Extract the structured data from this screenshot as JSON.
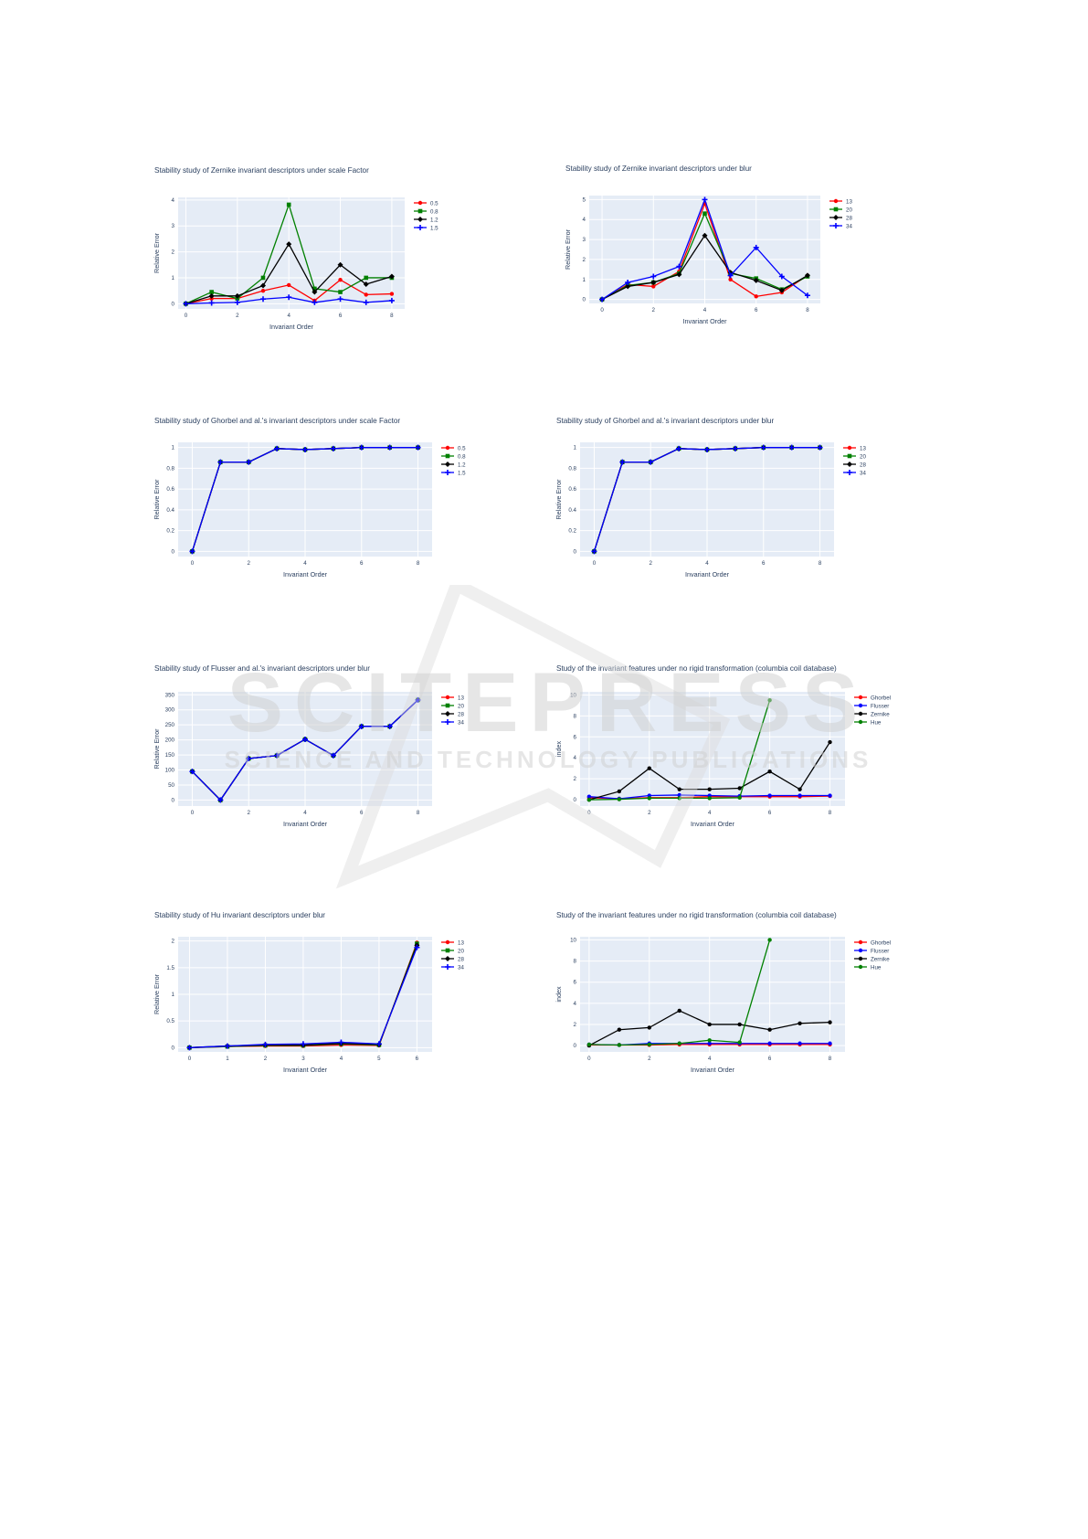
{
  "chart_data": [
    {
      "type": "line",
      "title": "Stability study of Zernike invariant descriptors under scale Factor",
      "xlabel": "Invariant Order",
      "ylabel": "Relative Error",
      "xlim": [
        -0.3,
        8.5
      ],
      "ylim": [
        -0.2,
        4.1
      ],
      "xticks": [
        0,
        2,
        4,
        6,
        8
      ],
      "yticks": [
        0,
        1,
        2,
        3,
        4
      ],
      "grid": true,
      "legend": "right",
      "x": [
        0,
        1,
        2,
        3,
        4,
        5,
        6,
        7,
        8
      ],
      "series": [
        {
          "name": "0.5",
          "color": "#ff0000",
          "marker": "circle",
          "values": [
            0,
            0.2,
            0.2,
            0.5,
            0.72,
            0.12,
            0.92,
            0.35,
            0.38
          ]
        },
        {
          "name": "0.8",
          "color": "#008000",
          "marker": "square",
          "values": [
            0,
            0.45,
            0.2,
            1.0,
            3.82,
            0.58,
            0.45,
            1.0,
            1.0
          ]
        },
        {
          "name": "1.2",
          "color": "#000000",
          "marker": "diamond",
          "values": [
            0,
            0.3,
            0.3,
            0.7,
            2.3,
            0.45,
            1.5,
            0.75,
            1.05
          ]
        },
        {
          "name": "1.5",
          "color": "#0000ff",
          "marker": "cross",
          "values": [
            0,
            0.03,
            0.05,
            0.18,
            0.25,
            0.05,
            0.18,
            0.05,
            0.12
          ]
        }
      ]
    },
    {
      "type": "line",
      "title": "Stability study of Zernike invariant descriptors under blur",
      "xlabel": "Invariant Order",
      "ylabel": "Relative Error",
      "xlim": [
        -0.5,
        8.5
      ],
      "ylim": [
        -0.2,
        5.2
      ],
      "xticks": [
        0,
        2,
        4,
        6,
        8
      ],
      "yticks": [
        0,
        1,
        2,
        3,
        4,
        5
      ],
      "grid": true,
      "legend": "right",
      "x": [
        0,
        1,
        2,
        3,
        4,
        5,
        6,
        7,
        8
      ],
      "series": [
        {
          "name": "13",
          "color": "#ff0000",
          "marker": "circle",
          "values": [
            0,
            0.75,
            0.65,
            1.4,
            4.8,
            1.0,
            0.15,
            0.35,
            1.2
          ]
        },
        {
          "name": "20",
          "color": "#008000",
          "marker": "square",
          "values": [
            0,
            0.7,
            0.85,
            1.3,
            4.3,
            1.3,
            1.05,
            0.5,
            1.15
          ]
        },
        {
          "name": "28",
          "color": "#000000",
          "marker": "diamond",
          "values": [
            0,
            0.65,
            0.85,
            1.25,
            3.2,
            1.35,
            0.95,
            0.45,
            1.2
          ]
        },
        {
          "name": "34",
          "color": "#0000ff",
          "marker": "cross",
          "values": [
            0,
            0.85,
            1.15,
            1.65,
            5.0,
            1.2,
            2.6,
            1.15,
            0.2
          ]
        }
      ]
    },
    {
      "type": "line",
      "title": "Stability study of Ghorbel and al.'s invariant descriptors under scale Factor",
      "xlabel": "Invariant Order",
      "ylabel": "Relative Error",
      "xlim": [
        -0.5,
        8.5
      ],
      "ylim": [
        -0.05,
        1.05
      ],
      "xticks": [
        0,
        2,
        4,
        6,
        8
      ],
      "yticks": [
        0,
        0.2,
        0.4,
        0.6,
        0.8,
        1
      ],
      "grid": true,
      "legend": "right",
      "x": [
        0,
        1,
        2,
        3,
        4,
        5,
        6,
        7,
        8
      ],
      "series": [
        {
          "name": "0.5",
          "color": "#ff0000",
          "marker": "circle",
          "values": [
            0,
            0.86,
            0.86,
            0.99,
            0.98,
            0.99,
            1.0,
            1.0,
            1.0
          ]
        },
        {
          "name": "0.8",
          "color": "#008000",
          "marker": "square",
          "values": [
            0,
            0.86,
            0.86,
            0.99,
            0.98,
            0.99,
            1.0,
            1.0,
            1.0
          ]
        },
        {
          "name": "1.2",
          "color": "#000000",
          "marker": "diamond",
          "values": [
            0,
            0.86,
            0.86,
            0.99,
            0.98,
            0.99,
            1.0,
            1.0,
            1.0
          ]
        },
        {
          "name": "1.5",
          "color": "#0000ff",
          "marker": "cross",
          "values": [
            0,
            0.86,
            0.86,
            0.99,
            0.98,
            0.99,
            1.0,
            1.0,
            1.0
          ]
        }
      ]
    },
    {
      "type": "line",
      "title": "Stability study of Ghorbel and al.'s invariant descriptors under blur",
      "xlabel": "Invariant Order",
      "ylabel": "Relative Error",
      "xlim": [
        -0.5,
        8.5
      ],
      "ylim": [
        -0.05,
        1.05
      ],
      "xticks": [
        0,
        2,
        4,
        6,
        8
      ],
      "yticks": [
        0,
        0.2,
        0.4,
        0.6,
        0.8,
        1
      ],
      "grid": true,
      "legend": "right",
      "x": [
        0,
        1,
        2,
        3,
        4,
        5,
        6,
        7,
        8
      ],
      "series": [
        {
          "name": "13",
          "color": "#ff0000",
          "marker": "circle",
          "values": [
            0,
            0.86,
            0.86,
            0.99,
            0.98,
            0.99,
            1.0,
            1.0,
            1.0
          ]
        },
        {
          "name": "20",
          "color": "#008000",
          "marker": "square",
          "values": [
            0,
            0.86,
            0.86,
            0.99,
            0.98,
            0.99,
            1.0,
            1.0,
            1.0
          ]
        },
        {
          "name": "28",
          "color": "#000000",
          "marker": "diamond",
          "values": [
            0,
            0.86,
            0.86,
            0.99,
            0.98,
            0.99,
            1.0,
            1.0,
            1.0
          ]
        },
        {
          "name": "34",
          "color": "#0000ff",
          "marker": "cross",
          "values": [
            0,
            0.86,
            0.86,
            0.99,
            0.98,
            0.99,
            1.0,
            1.0,
            1.0
          ]
        }
      ]
    },
    {
      "type": "line",
      "title": "Stability study of Flusser and al.'s invariant descriptors under blur",
      "xlabel": "Invariant Order",
      "ylabel": "Relative Error",
      "xlim": [
        -0.5,
        8.5
      ],
      "ylim": [
        -20,
        360
      ],
      "xticks": [
        0,
        2,
        4,
        6,
        8
      ],
      "yticks": [
        0,
        50,
        100,
        150,
        200,
        250,
        300,
        350
      ],
      "grid": true,
      "legend": "right",
      "x": [
        0,
        1,
        2,
        3,
        4,
        5,
        6,
        7,
        8
      ],
      "series": [
        {
          "name": "13",
          "color": "#ff0000",
          "marker": "circle",
          "values": [
            95,
            0,
            138,
            148,
            202,
            148,
            245,
            245,
            333
          ]
        },
        {
          "name": "20",
          "color": "#008000",
          "marker": "square",
          "values": [
            95,
            0,
            138,
            148,
            202,
            148,
            245,
            245,
            333
          ]
        },
        {
          "name": "28",
          "color": "#000000",
          "marker": "diamond",
          "values": [
            95,
            0,
            138,
            148,
            202,
            148,
            245,
            245,
            333
          ]
        },
        {
          "name": "34",
          "color": "#0000ff",
          "marker": "cross",
          "values": [
            95,
            0,
            138,
            148,
            202,
            148,
            245,
            245,
            333
          ]
        }
      ]
    },
    {
      "type": "line",
      "title": "Study of the invariant features under no rigid transformation (columbia coil database)",
      "xlabel": "Invariant Order",
      "ylabel": "index",
      "xlim": [
        -0.3,
        8.5
      ],
      "ylim": [
        -0.6,
        10.3
      ],
      "xticks": [
        0,
        2,
        4,
        6,
        8
      ],
      "yticks": [
        0,
        2,
        4,
        6,
        8,
        10
      ],
      "grid": true,
      "legend": "right",
      "x": [
        0,
        1,
        2,
        3,
        4,
        5,
        6,
        7,
        8
      ],
      "series": [
        {
          "name": "Ghorbel",
          "color": "#ff0000",
          "marker": "circle",
          "values": [
            0.2,
            0.1,
            0.2,
            0.2,
            0.3,
            0.3,
            0.3,
            0.3,
            0.35
          ]
        },
        {
          "name": "Flusser",
          "color": "#0000ff",
          "marker": "circle",
          "values": [
            0.3,
            0.1,
            0.4,
            0.45,
            0.4,
            0.35,
            0.4,
            0.4,
            0.4
          ]
        },
        {
          "name": "Zernike",
          "color": "#000000",
          "marker": "circle",
          "values": [
            0,
            0.8,
            3.0,
            1.0,
            1.0,
            1.1,
            2.7,
            1.0,
            5.5
          ]
        },
        {
          "name": "Hue",
          "color": "#008000",
          "marker": "circle",
          "values": [
            0,
            0.05,
            0.15,
            0.15,
            0.15,
            0.2,
            9.5,
            null,
            null
          ]
        }
      ]
    },
    {
      "type": "line",
      "title": "Stability study of Hu invariant descriptors under blur",
      "xlabel": "Invariant Order",
      "ylabel": "Relative Error",
      "xlim": [
        -0.3,
        6.4
      ],
      "ylim": [
        -0.08,
        2.08
      ],
      "xticks": [
        0,
        1,
        2,
        3,
        4,
        5,
        6
      ],
      "yticks": [
        0,
        0.5,
        1,
        1.5,
        2
      ],
      "grid": true,
      "legend": "right",
      "x": [
        0,
        1,
        2,
        3,
        4,
        5,
        6
      ],
      "series": [
        {
          "name": "13",
          "color": "#ff0000",
          "marker": "circle",
          "values": [
            0,
            0.02,
            0.03,
            0.03,
            0.05,
            0.04,
            1.97
          ]
        },
        {
          "name": "20",
          "color": "#008000",
          "marker": "square",
          "values": [
            0,
            0.02,
            0.04,
            0.04,
            0.07,
            0.05,
            1.95
          ]
        },
        {
          "name": "28",
          "color": "#000000",
          "marker": "diamond",
          "values": [
            0,
            0.03,
            0.05,
            0.05,
            0.08,
            0.06,
            1.92
          ]
        },
        {
          "name": "34",
          "color": "#0000ff",
          "marker": "cross",
          "values": [
            0,
            0.03,
            0.06,
            0.07,
            0.1,
            0.07,
            1.88
          ]
        }
      ]
    },
    {
      "type": "line",
      "title": "Study of the invariant features under no rigid transformation (columbia coil database)",
      "xlabel": "Invariant Order",
      "ylabel": "index",
      "xlim": [
        -0.3,
        8.5
      ],
      "ylim": [
        -0.6,
        10.3
      ],
      "xticks": [
        0,
        2,
        4,
        6,
        8
      ],
      "yticks": [
        0,
        2,
        4,
        6,
        8,
        10
      ],
      "grid": true,
      "legend": "right",
      "x": [
        0,
        1,
        2,
        3,
        4,
        5,
        6,
        7,
        8
      ],
      "series": [
        {
          "name": "Ghorbel",
          "color": "#ff0000",
          "marker": "circle",
          "values": [
            0.05,
            0.05,
            0.05,
            0.1,
            0.1,
            0.1,
            0.1,
            0.1,
            0.1
          ]
        },
        {
          "name": "Flusser",
          "color": "#0000ff",
          "marker": "circle",
          "values": [
            0.1,
            0.05,
            0.2,
            0.2,
            0.2,
            0.2,
            0.2,
            0.2,
            0.2
          ]
        },
        {
          "name": "Zernike",
          "color": "#000000",
          "marker": "circle",
          "values": [
            0,
            1.5,
            1.7,
            3.3,
            2.0,
            2.0,
            1.5,
            2.1,
            2.2
          ]
        },
        {
          "name": "Hue",
          "color": "#008000",
          "marker": "circle",
          "values": [
            0.1,
            0.05,
            0.1,
            0.2,
            0.5,
            0.3,
            10.0,
            null,
            null
          ]
        }
      ]
    }
  ],
  "watermark": {
    "main": "SCITEPRESS",
    "sub": "SCIENCE AND TECHNOLOGY PUBLICATIONS"
  }
}
